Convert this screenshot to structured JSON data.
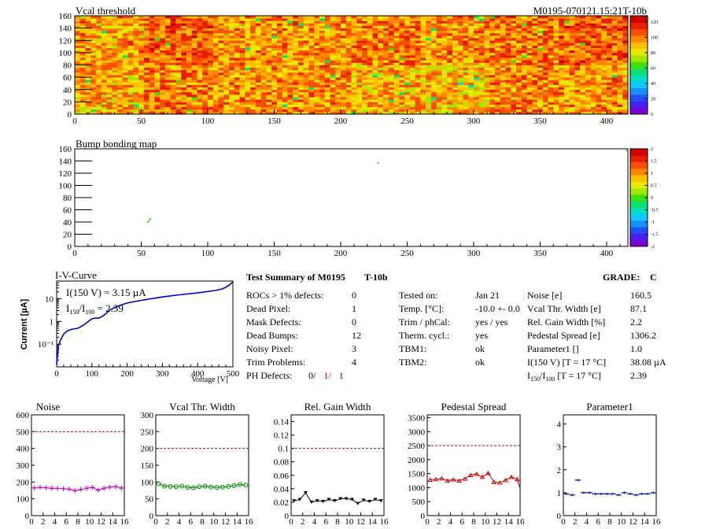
{
  "chart_data": [
    {
      "type": "heatmap",
      "title": "Vcal threshold",
      "subtitle": "M0195-070121.15:21T-10b",
      "x_ticks": [
        0,
        50,
        100,
        150,
        200,
        250,
        300,
        350,
        400
      ],
      "y_ticks": [
        0,
        20,
        40,
        60,
        80,
        100,
        120,
        140,
        160
      ],
      "xlim": [
        0,
        416
      ],
      "ylim": [
        0,
        160
      ],
      "colorbar_ticks": [
        0,
        20,
        40,
        60,
        80,
        100,
        120
      ],
      "colorbar_range": [
        0,
        128
      ],
      "roc_mean_levels": [
        92,
        100,
        95,
        96,
        92,
        90,
        98,
        96,
        106,
        100,
        98,
        100,
        96,
        96,
        104,
        94
      ],
      "grid": false
    },
    {
      "type": "heatmap",
      "title": "Bump bonding map",
      "x_ticks": [
        0,
        50,
        100,
        150,
        200,
        250,
        300,
        350,
        400
      ],
      "y_ticks": [
        0,
        20,
        40,
        60,
        80,
        100,
        120,
        140,
        160
      ],
      "xlim": [
        0,
        416
      ],
      "ylim": [
        0,
        160
      ],
      "colorbar_ticks": [
        -2,
        -1.5,
        -1,
        -0.5,
        0,
        0.5,
        1,
        1.5,
        2
      ],
      "colorbar_range": [
        -2,
        2
      ],
      "points": [
        {
          "x": 55,
          "y": 40
        },
        {
          "x": 56,
          "y": 43
        },
        {
          "x": 57,
          "y": 45
        },
        {
          "x": 228,
          "y": 137
        },
        {
          "x": 415,
          "y": 157
        }
      ]
    },
    {
      "type": "line",
      "title": "I-V-Curve",
      "xlabel": "Voltage [V]",
      "ylabel": "Current [µA]",
      "y_scale": "log",
      "x_ticks": [
        0,
        100,
        200,
        300,
        400,
        500
      ],
      "y_ticks": [
        0.1,
        1,
        10
      ],
      "y_tick_labels": [
        "10⁻¹",
        "1",
        "10"
      ],
      "annotation1": "I(150 V) = 3.15 µA",
      "annotation2_lead": "I",
      "annotation2_sub1": "150",
      "annotation2_mid": "/I",
      "annotation2_sub2": "100",
      "annotation2_tail": " = 2.39",
      "x": [
        0,
        2,
        5,
        10,
        20,
        30,
        40,
        50,
        60,
        70,
        80,
        90,
        100,
        110,
        120,
        130,
        140,
        150,
        170,
        200,
        250,
        300,
        350,
        400,
        450,
        470,
        480,
        490,
        500
      ],
      "y": [
        0.012,
        0.03,
        0.08,
        0.14,
        0.28,
        0.38,
        0.44,
        0.47,
        0.5,
        0.6,
        0.75,
        1.0,
        1.3,
        1.4,
        1.4,
        1.7,
        2.2,
        3.15,
        4.5,
        6.5,
        9,
        12,
        15,
        18,
        23,
        27,
        32,
        40,
        55
      ],
      "xlim": [
        0,
        500
      ],
      "ylim": [
        0.01,
        60
      ],
      "color": "#0000cc"
    },
    {
      "type": "line",
      "title": "Noise",
      "x_ticks": [
        0,
        2,
        4,
        6,
        8,
        10,
        12,
        14,
        16
      ],
      "y_ticks": [
        0,
        100,
        200,
        300,
        400,
        500,
        600
      ],
      "xlim": [
        0,
        16
      ],
      "ylim": [
        0,
        600
      ],
      "x": [
        0,
        1,
        2,
        3,
        4,
        5,
        6,
        7,
        8,
        9,
        10,
        11,
        12,
        13,
        14,
        15
      ],
      "y": [
        165,
        168,
        166,
        163,
        162,
        160,
        158,
        148,
        156,
        163,
        168,
        152,
        163,
        170,
        173,
        164
      ],
      "cut": 500,
      "marker": "plus",
      "color": "#cc00cc"
    },
    {
      "type": "line",
      "title": "Vcal Thr. Width",
      "x_ticks": [
        0,
        2,
        4,
        6,
        8,
        10,
        12,
        14,
        16
      ],
      "y_ticks": [
        0,
        50,
        100,
        150,
        200,
        250,
        300
      ],
      "xlim": [
        0,
        16
      ],
      "ylim": [
        0,
        300
      ],
      "x": [
        0,
        1,
        2,
        3,
        4,
        5,
        6,
        7,
        8,
        9,
        10,
        11,
        12,
        13,
        14,
        15
      ],
      "y": [
        95,
        88,
        87,
        86,
        88,
        84,
        83,
        86,
        88,
        85,
        84,
        85,
        87,
        89,
        93,
        91
      ],
      "cut": 200,
      "marker": "circle",
      "color": "#008800"
    },
    {
      "type": "line",
      "title": "Rel. Gain Width",
      "x_ticks": [
        0,
        2,
        4,
        6,
        8,
        10,
        12,
        14,
        16
      ],
      "y_ticks": [
        0,
        0.02,
        0.04,
        0.06,
        0.08,
        0.1,
        0.12,
        0.14
      ],
      "xlim": [
        0,
        16
      ],
      "ylim": [
        0,
        0.15
      ],
      "x": [
        0,
        1,
        2,
        3,
        4,
        5,
        6,
        7,
        8,
        9,
        10,
        11,
        12,
        13,
        14,
        15
      ],
      "y": [
        0.022,
        0.024,
        0.034,
        0.02,
        0.022,
        0.021,
        0.024,
        0.022,
        0.025,
        0.025,
        0.024,
        0.018,
        0.023,
        0.021,
        0.024,
        0.022
      ],
      "cut": 0.1,
      "marker": "triangle-down",
      "color": "#000000"
    },
    {
      "type": "line",
      "title": "Pedestal Spread",
      "x_ticks": [
        0,
        2,
        4,
        6,
        8,
        10,
        12,
        14,
        16
      ],
      "y_ticks": [
        0,
        500,
        1000,
        1500,
        2000,
        2500,
        3000,
        3500
      ],
      "xlim": [
        0,
        16
      ],
      "ylim": [
        0,
        3600
      ],
      "x": [
        0,
        1,
        2,
        3,
        4,
        5,
        6,
        7,
        8,
        9,
        10,
        11,
        12,
        13,
        14,
        15
      ],
      "y": [
        1280,
        1300,
        1330,
        1250,
        1290,
        1250,
        1320,
        1450,
        1490,
        1380,
        1520,
        1200,
        1180,
        1270,
        1380,
        1300
      ],
      "last_point": 960,
      "cut": 2500,
      "marker": "triangle-up",
      "color": "#cc0000"
    },
    {
      "type": "line",
      "title": "Parameter1",
      "x_ticks": [
        0,
        2,
        4,
        6,
        8,
        10,
        12,
        14,
        16
      ],
      "y_ticks": [
        0,
        1,
        2,
        3,
        4
      ],
      "xlim": [
        0,
        16
      ],
      "ylim": [
        0,
        4.4
      ],
      "x": [
        0,
        1,
        2,
        3,
        4,
        5,
        6,
        7,
        8,
        9,
        10,
        11,
        12,
        13,
        14,
        15
      ],
      "y": [
        0.95,
        0.9,
        1.55,
        1.0,
        1.0,
        0.95,
        0.95,
        0.95,
        0.95,
        0.9,
        1.0,
        0.95,
        0.9,
        0.95,
        0.95,
        1.0
      ],
      "marker": "hbar",
      "color": "#0000aa"
    }
  ],
  "summary": {
    "title": "Test Summary of M0195",
    "title_suffix": "T-10b",
    "grade_label": "GRADE:",
    "grade_value": "C",
    "left_rows": [
      {
        "label": "ROCs > 1% defects:",
        "value": "0"
      },
      {
        "label": "Dead Pixel:",
        "value": "1"
      },
      {
        "label": "Mask Defects:",
        "value": "0"
      },
      {
        "label": "Dead Bumps:",
        "value": "12"
      },
      {
        "label": "Noisy Pixel:",
        "value": "3"
      },
      {
        "label": "Trim Problems:",
        "value": "4"
      }
    ],
    "ph_label": "PH Defects:",
    "ph_values": [
      {
        "v": "0/",
        "c": "#000000"
      },
      {
        "v": "1/",
        "c": "#cc0000"
      },
      {
        "v": "1",
        "c": "#0000cc"
      }
    ],
    "mid_rows": [
      {
        "label": "Tested on:",
        "value": "Jan 21"
      },
      {
        "label": "Temp. [°C]:",
        "value": "-10.0 +- 0.0"
      },
      {
        "label": "Trim / phCal:",
        "value": "yes / yes"
      },
      {
        "label": "Therm. cycl.:",
        "value": "yes"
      },
      {
        "label": "TBM1:",
        "value": "ok"
      },
      {
        "label": "TBM2:",
        "value": "ok"
      }
    ],
    "right_rows": [
      {
        "label": "Noise [e]",
        "value": "160.5"
      },
      {
        "label": "Vcal Thr. Width [e]",
        "value": "87.1"
      },
      {
        "label": "Rel. Gain Width [%]",
        "value": "2.2"
      },
      {
        "label": "Pedestal Spread [e]",
        "value": "1306.2"
      },
      {
        "label": "Parameter1 []",
        "value": "1.0"
      },
      {
        "label": "I(150 V) [T = 17 °C]",
        "value": "38.08 µA"
      }
    ],
    "ratio_row": {
      "lead": "I",
      "sub1": "150",
      "mid": "/I",
      "sub2": "100",
      "tail": "  [T = 17 °C]",
      "value": "2.39"
    }
  }
}
